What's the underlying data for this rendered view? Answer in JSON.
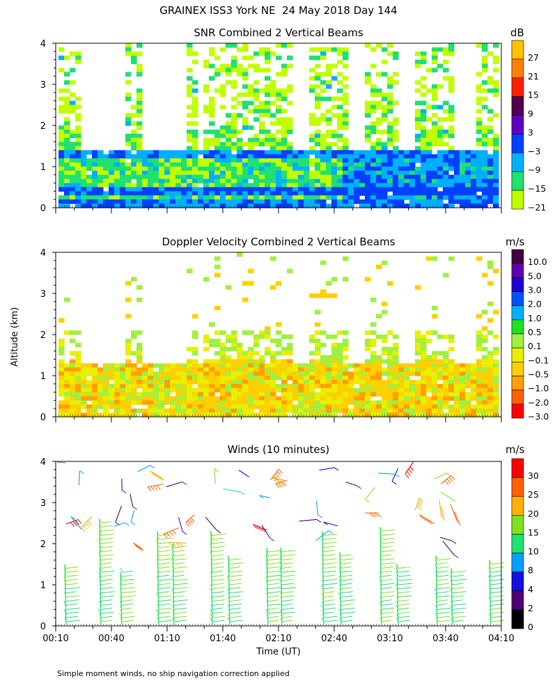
{
  "header": {
    "title": "GRAINEX ISS3 York NE  24 May 2018 Day 144",
    "ylabel": "Altitude (km)",
    "xlabel": "Time (UT)",
    "footnote": "Simple moment winds, no ship navigation correction applied"
  },
  "chart_data": [
    {
      "type": "heatmap",
      "title": "SNR Combined 2 Vertical Beams",
      "unit": "dB",
      "xlabel": "Time (UT)",
      "ylabel": "Altitude (km)",
      "xlim": [
        "00:10",
        "04:10"
      ],
      "ylim": [
        0,
        4
      ],
      "yticks": [
        "0",
        "1",
        "2",
        "3",
        "4"
      ],
      "colorbar": {
        "labels": [
          "27",
          "21",
          "15",
          "9",
          "3",
          "−3",
          "−9",
          "−15",
          "−21"
        ],
        "colors": [
          "#ffc000",
          "#ff8000",
          "#ff2000",
          "#500050",
          "#6000c0",
          "#0040ff",
          "#00b0ff",
          "#20e070",
          "#c0ff00"
        ]
      }
    },
    {
      "type": "heatmap",
      "title": "Doppler Velocity Combined 2 Vertical Beams",
      "unit": "m/s",
      "xlim": [
        "00:10",
        "04:10"
      ],
      "ylim": [
        0,
        4
      ],
      "yticks": [
        "0",
        "1",
        "2",
        "3",
        "4"
      ],
      "colorbar": {
        "labels": [
          "10.0",
          "5.0",
          "3.0",
          "2.0",
          "1.0",
          "0.5",
          "0.1",
          "−0.1",
          "−0.5",
          "−1.0",
          "−2.0",
          "−3.0"
        ],
        "colors": [
          "#400040",
          "#6000b0",
          "#2000d0",
          "#0050ff",
          "#00b0ff",
          "#20e020",
          "#a0f040",
          "#e8f000",
          "#ffd000",
          "#ffa000",
          "#ff6000",
          "#ff0000"
        ]
      }
    },
    {
      "type": "wind-barbs",
      "title": "Winds (10 minutes)",
      "unit": "m/s",
      "xlim": [
        "00:10",
        "04:10"
      ],
      "ylim": [
        0,
        4
      ],
      "yticks": [
        "0",
        "1",
        "2",
        "3",
        "4"
      ],
      "xticks": [
        "00:10",
        "00:40",
        "01:10",
        "01:40",
        "02:10",
        "02:40",
        "03:10",
        "03:40",
        "04:10"
      ],
      "colorbar": {
        "labels": [
          "30",
          "25",
          "20",
          "15",
          "10",
          "8",
          "4",
          "2",
          "0"
        ],
        "colors": [
          "#ff0000",
          "#ff6000",
          "#ffb000",
          "#80e020",
          "#20e070",
          "#00a0ff",
          "#1010e0",
          "#500070",
          "#000000"
        ]
      }
    }
  ]
}
